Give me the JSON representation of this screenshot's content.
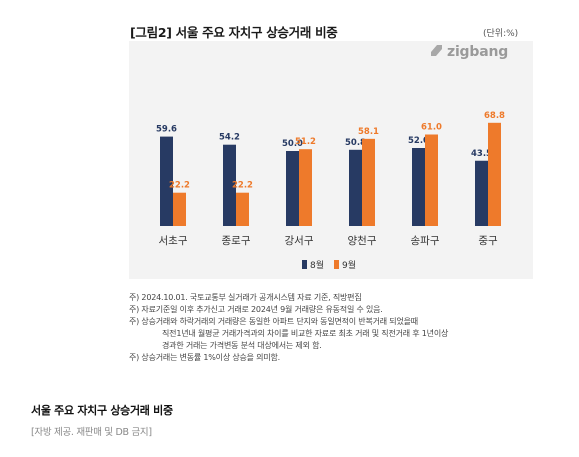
{
  "figure": {
    "title": "[그림2] 서울 주요 자치구 상승거래 비중",
    "unit": "(단위:%)",
    "logo": "zigbang"
  },
  "chart_data": {
    "type": "bar",
    "categories": [
      "서초구",
      "종로구",
      "강서구",
      "양천구",
      "송파구",
      "중구"
    ],
    "series": [
      {
        "name": "8월",
        "color": "#273a63",
        "values": [
          59.6,
          54.2,
          50.0,
          50.8,
          52.0,
          43.5
        ]
      },
      {
        "name": "9월",
        "color": "#ee7a2b",
        "values": [
          22.2,
          22.2,
          51.2,
          58.1,
          61.0,
          68.8
        ]
      }
    ],
    "value_labels": [
      [
        "59.6",
        "54.2",
        "50.0",
        "50.8",
        "52.0",
        "43.5"
      ],
      [
        "22.2",
        "22.2",
        "51.2",
        "58.1",
        "61.0",
        "68.8"
      ]
    ],
    "legend": [
      "8월",
      "9월"
    ],
    "grid": false
  },
  "notes": [
    {
      "text": "주) 2024.10.01. 국토교통부 실거래가 공개시스템 자료 기준, 직방편집",
      "indent": false
    },
    {
      "text": "주) 자료기준일 이후 추가신고 거래로 2024년 9월 거래량은 유동적일 수 있음.",
      "indent": false
    },
    {
      "text": "주) 상승거래와 하락거래의 거래량은 동일한 아파트 단지와 동일면적이 반복거래 되었을때",
      "indent": false
    },
    {
      "text": "직전1년내 월평균 거래가격과의 차이를 비교한 자료로 최초 거래 및 직전거래 후 1년이상",
      "indent": true
    },
    {
      "text": "경과한 거래는 가격변동 분석 대상에서는 제외 함.",
      "indent": true
    },
    {
      "text": "주) 상승거래는 변동률 1%이상 상승을 의미함.",
      "indent": false
    }
  ],
  "caption": {
    "title": "서울 주요 자치구 상승거래 비중",
    "source": "[자방 제공. 재판매 및 DB 금지]"
  }
}
